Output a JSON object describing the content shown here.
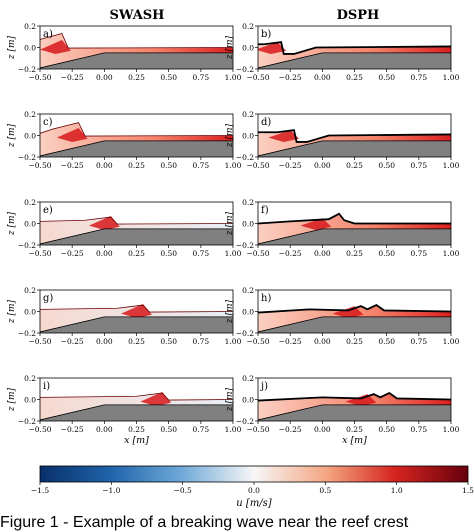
{
  "columns": {
    "left": "SWASH",
    "right": "DSPH"
  },
  "panels": [
    {
      "id": "a",
      "label": "a)",
      "model": "SWASH",
      "row": 0,
      "col": 0,
      "front": -0.28,
      "kind": "swash"
    },
    {
      "id": "b",
      "label": "b)",
      "model": "DSPH",
      "row": 0,
      "col": 1,
      "front": -0.3,
      "kind": "dsph-early"
    },
    {
      "id": "c",
      "label": "c)",
      "model": "SWASH",
      "row": 1,
      "col": 0,
      "front": -0.15,
      "kind": "swash"
    },
    {
      "id": "d",
      "label": "d)",
      "model": "DSPH",
      "row": 1,
      "col": 1,
      "front": -0.2,
      "kind": "dsph-early"
    },
    {
      "id": "e",
      "label": "e)",
      "model": "SWASH",
      "row": 2,
      "col": 0,
      "front": 0.1,
      "kind": "swash"
    },
    {
      "id": "f",
      "label": "f)",
      "model": "DSPH",
      "row": 2,
      "col": 1,
      "front": 0.05,
      "kind": "dsph-break"
    },
    {
      "id": "g",
      "label": "g)",
      "model": "SWASH",
      "row": 3,
      "col": 0,
      "front": 0.35,
      "kind": "swash"
    },
    {
      "id": "h",
      "label": "h)",
      "model": "DSPH",
      "row": 3,
      "col": 1,
      "front": 0.3,
      "kind": "dsph-late"
    },
    {
      "id": "i",
      "label": "i)",
      "model": "SWASH",
      "row": 4,
      "col": 0,
      "front": 0.5,
      "kind": "swash"
    },
    {
      "id": "j",
      "label": "j)",
      "model": "DSPH",
      "row": 4,
      "col": 1,
      "front": 0.4,
      "kind": "dsph-late"
    }
  ],
  "axes": {
    "x_ticks": [
      -0.5,
      -0.25,
      0,
      0.25,
      0.5,
      0.75,
      1.0
    ],
    "x_tick_labels": [
      "−0.50",
      "−0.25",
      "0.00",
      "0.25",
      "0.50",
      "0.75",
      "1.00"
    ],
    "y_ticks": [
      0.2,
      0.0,
      -0.2
    ],
    "y_tick_labels": [
      "0.2",
      "0.0",
      "−0.2"
    ],
    "xlim": [
      -0.5,
      1.0
    ],
    "ylim": [
      -0.2,
      0.2
    ],
    "xlabel": "x [m]",
    "ylabel": "z [m]"
  },
  "colorbar": {
    "ticks": [
      -1.5,
      -1.0,
      -0.5,
      0.0,
      0.5,
      1.0,
      1.5
    ],
    "tick_labels": [
      "−1.5",
      "−1.0",
      "−0.5",
      "0.0",
      "0.5",
      "1.0",
      "1.5"
    ],
    "range": [
      -1.5,
      1.5
    ],
    "label": "u [m/s]",
    "colors": {
      "neg": "#08306b",
      "mid": "#ffffff",
      "pos": "#67000d"
    }
  },
  "bed_color": "#808080",
  "caption": "Figure 1 - Example of a breaking wave near the reef crest"
}
